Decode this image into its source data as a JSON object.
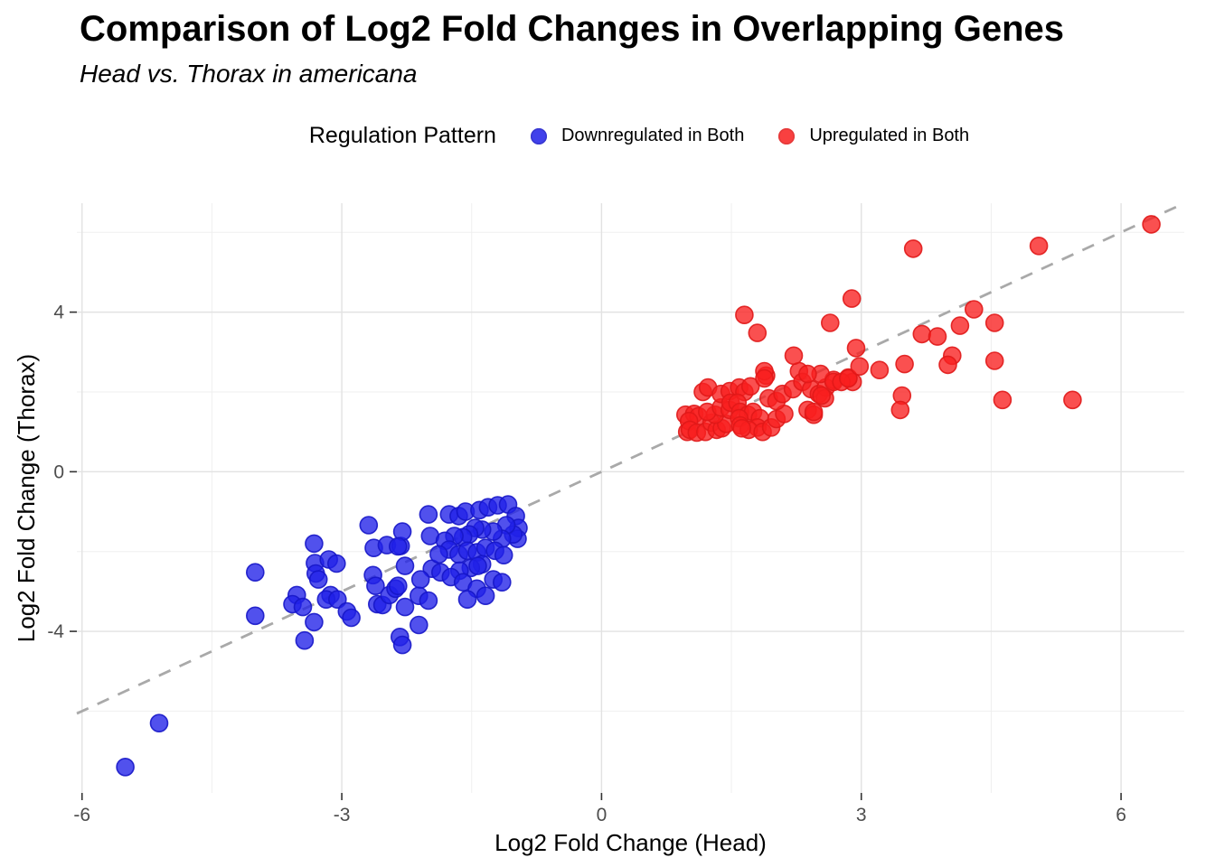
{
  "page": {
    "title": "Comparison of Log2 Fold Changes in Overlapping Genes",
    "subtitle": "Head vs. Thorax in americana"
  },
  "legend": {
    "title": "Regulation Pattern",
    "items": [
      {
        "label": "Downregulated in Both",
        "color": "#2020E8",
        "edge": "#1616C8"
      },
      {
        "label": "Upregulated in Both",
        "color": "#F81F1F",
        "edge": "#E01818"
      }
    ]
  },
  "chart_data": {
    "type": "scatter",
    "title": "Comparison of Log2 Fold Changes in Overlapping Genes",
    "subtitle": "Head vs. Thorax in americana",
    "xlabel": "Log2 Fold Change (Head)",
    "ylabel": "Log2 Fold Change (Thorax)",
    "xlim": [
      -6.06,
      6.73
    ],
    "ylim": [
      -8.05,
      6.73
    ],
    "x_ticks": [
      -6,
      -3,
      0,
      3,
      6
    ],
    "y_ticks": [
      -4,
      0,
      4
    ],
    "x_minor_ticks": [
      -4.5,
      -1.5,
      1.5,
      4.5
    ],
    "y_minor_ticks": [
      -6,
      -2,
      2,
      6
    ],
    "grid": "on",
    "legend_position": "top",
    "identity_line": {
      "style": "dashed",
      "color": "#A9A9A9",
      "from": [
        -6.06,
        -6.06
      ],
      "to": [
        6.73,
        6.73
      ]
    },
    "point_radius_px": 9.5,
    "series": [
      {
        "name": "Downregulated in Both",
        "color": "#2020E8",
        "edge": "#1616C8",
        "points": [
          [
            -5.5,
            -7.4
          ],
          [
            -5.11,
            -6.3
          ],
          [
            -4.0,
            -2.52
          ],
          [
            -4.0,
            -3.61
          ],
          [
            -3.52,
            -3.09
          ],
          [
            -3.57,
            -3.32
          ],
          [
            -3.45,
            -3.39
          ],
          [
            -3.32,
            -3.77
          ],
          [
            -3.43,
            -4.23
          ],
          [
            -3.32,
            -1.8
          ],
          [
            -3.31,
            -2.29
          ],
          [
            -3.3,
            -2.55
          ],
          [
            -3.27,
            -2.7
          ],
          [
            -3.15,
            -2.2
          ],
          [
            -3.06,
            -2.3
          ],
          [
            -3.13,
            -3.09
          ],
          [
            -3.18,
            -3.2
          ],
          [
            -3.05,
            -3.2
          ],
          [
            -2.94,
            -3.5
          ],
          [
            -2.89,
            -3.66
          ],
          [
            -2.69,
            -1.34
          ],
          [
            -2.63,
            -1.91
          ],
          [
            -2.48,
            -1.84
          ],
          [
            -2.64,
            -2.59
          ],
          [
            -2.61,
            -2.86
          ],
          [
            -2.59,
            -3.32
          ],
          [
            -2.53,
            -3.34
          ],
          [
            -2.45,
            -3.09
          ],
          [
            -2.33,
            -4.14
          ],
          [
            -2.32,
            -1.86
          ],
          [
            -2.3,
            -1.5
          ],
          [
            -2.35,
            -1.87
          ],
          [
            -2.27,
            -2.36
          ],
          [
            -2.38,
            -2.93
          ],
          [
            -2.35,
            -2.86
          ],
          [
            -2.11,
            -3.11
          ],
          [
            -2.27,
            -3.39
          ],
          [
            -2.0,
            -1.07
          ],
          [
            -1.98,
            -1.61
          ],
          [
            -1.96,
            -2.43
          ],
          [
            -2.09,
            -2.7
          ],
          [
            -2.0,
            -3.23
          ],
          [
            -2.11,
            -3.84
          ],
          [
            -2.3,
            -4.34
          ],
          [
            -1.76,
            -1.07
          ],
          [
            -1.65,
            -1.11
          ],
          [
            -1.57,
            -1.0
          ],
          [
            -1.41,
            -0.96
          ],
          [
            -1.31,
            -0.89
          ],
          [
            -1.2,
            -0.84
          ],
          [
            -1.08,
            -0.82
          ],
          [
            -0.99,
            -1.11
          ],
          [
            -0.96,
            -1.41
          ],
          [
            -0.97,
            -1.68
          ],
          [
            -1.02,
            -1.57
          ],
          [
            -1.1,
            -1.34
          ],
          [
            -1.15,
            -1.68
          ],
          [
            -1.25,
            -1.5
          ],
          [
            -1.38,
            -1.45
          ],
          [
            -1.46,
            -1.41
          ],
          [
            -1.53,
            -1.57
          ],
          [
            -1.6,
            -1.64
          ],
          [
            -1.7,
            -1.61
          ],
          [
            -1.81,
            -1.73
          ],
          [
            -1.76,
            -1.95
          ],
          [
            -1.65,
            -2.07
          ],
          [
            -1.55,
            -1.98
          ],
          [
            -1.44,
            -2.02
          ],
          [
            -1.34,
            -1.91
          ],
          [
            -1.23,
            -1.98
          ],
          [
            -1.13,
            -2.09
          ],
          [
            -1.38,
            -2.32
          ],
          [
            -1.51,
            -2.41
          ],
          [
            -1.64,
            -2.48
          ],
          [
            -1.88,
            -2.07
          ],
          [
            -1.86,
            -2.52
          ],
          [
            -1.74,
            -2.64
          ],
          [
            -1.6,
            -2.77
          ],
          [
            -1.44,
            -2.93
          ],
          [
            -1.25,
            -2.7
          ],
          [
            -1.15,
            -2.77
          ],
          [
            -1.55,
            -3.2
          ],
          [
            -1.34,
            -3.11
          ],
          [
            -1.43,
            -2.36
          ]
        ]
      },
      {
        "name": "Upregulated in Both",
        "color": "#F81F1F",
        "edge": "#E01818",
        "points": [
          [
            0.97,
            1.43
          ],
          [
            1.07,
            1.45
          ],
          [
            1.12,
            1.39
          ],
          [
            0.99,
            1.0
          ],
          [
            1.01,
            1.27
          ],
          [
            1.02,
            1.05
          ],
          [
            1.1,
            0.98
          ],
          [
            1.2,
            1.0
          ],
          [
            1.27,
            1.23
          ],
          [
            1.33,
            1.05
          ],
          [
            1.39,
            1.09
          ],
          [
            1.44,
            1.2
          ],
          [
            1.31,
            1.43
          ],
          [
            1.22,
            1.5
          ],
          [
            1.38,
            1.61
          ],
          [
            1.48,
            1.55
          ],
          [
            1.17,
            2.0
          ],
          [
            1.23,
            2.11
          ],
          [
            1.38,
            1.95
          ],
          [
            1.48,
            2.02
          ],
          [
            1.59,
            2.11
          ],
          [
            1.65,
            2.0
          ],
          [
            1.72,
            2.14
          ],
          [
            1.9,
            2.41
          ],
          [
            1.88,
            2.52
          ],
          [
            1.49,
            1.73
          ],
          [
            1.57,
            1.73
          ],
          [
            1.6,
            1.5
          ],
          [
            1.69,
            1.43
          ],
          [
            1.75,
            1.5
          ],
          [
            1.83,
            1.34
          ],
          [
            1.59,
            1.34
          ],
          [
            1.6,
            1.16
          ],
          [
            1.8,
            1.11
          ],
          [
            1.7,
            1.05
          ],
          [
            1.62,
            1.09
          ],
          [
            1.86,
            1.0
          ],
          [
            1.96,
            1.11
          ],
          [
            2.02,
            1.32
          ],
          [
            2.11,
            1.45
          ],
          [
            1.93,
            1.84
          ],
          [
            2.02,
            1.77
          ],
          [
            2.09,
            1.95
          ],
          [
            2.21,
            2.07
          ],
          [
            2.28,
            2.52
          ],
          [
            2.32,
            2.25
          ],
          [
            2.42,
            2.07
          ],
          [
            2.51,
            1.95
          ],
          [
            2.59,
            2.11
          ],
          [
            2.68,
            2.3
          ],
          [
            2.38,
            1.55
          ],
          [
            2.45,
            1.43
          ],
          [
            2.58,
            1.84
          ],
          [
            2.45,
            1.5
          ],
          [
            2.54,
            1.91
          ],
          [
            2.53,
            2.45
          ],
          [
            2.38,
            2.45
          ],
          [
            2.68,
            2.25
          ],
          [
            2.85,
            2.36
          ],
          [
            2.9,
            2.25
          ],
          [
            2.77,
            2.25
          ],
          [
            2.85,
            2.34
          ],
          [
            1.88,
            2.34
          ],
          [
            2.22,
            2.91
          ],
          [
            2.94,
            3.1
          ],
          [
            2.98,
            2.64
          ],
          [
            3.21,
            2.55
          ],
          [
            3.5,
            2.7
          ],
          [
            3.47,
            1.91
          ],
          [
            3.45,
            1.55
          ],
          [
            1.65,
            3.93
          ],
          [
            1.8,
            3.48
          ],
          [
            2.64,
            3.73
          ],
          [
            2.89,
            4.34
          ],
          [
            3.7,
            3.45
          ],
          [
            3.88,
            3.39
          ],
          [
            3.6,
            5.59
          ],
          [
            4.3,
            4.07
          ],
          [
            4.14,
            3.66
          ],
          [
            4.54,
            3.73
          ],
          [
            4.05,
            2.91
          ],
          [
            4.0,
            2.68
          ],
          [
            4.54,
            2.78
          ],
          [
            4.63,
            1.8
          ],
          [
            5.05,
            5.66
          ],
          [
            5.44,
            1.8
          ],
          [
            6.35,
            6.2
          ]
        ]
      }
    ]
  }
}
